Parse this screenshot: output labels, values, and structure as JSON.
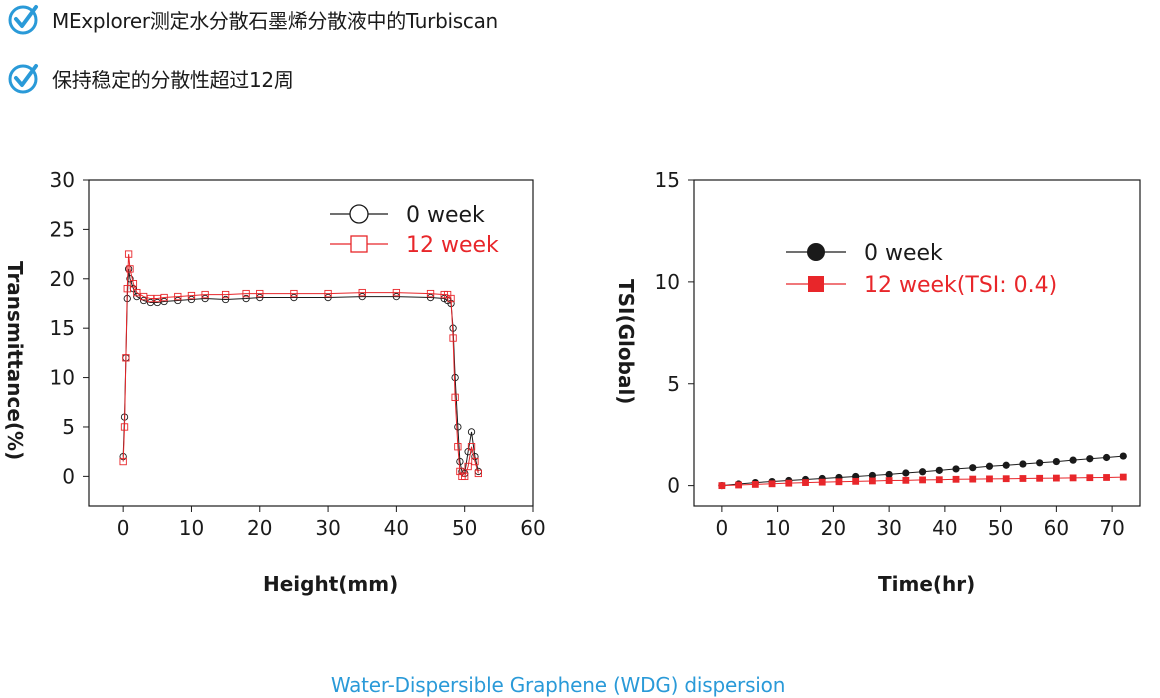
{
  "bullets": [
    {
      "text": "MExplorer测定水分散石墨烯分散液中的Turbiscan",
      "icon": "checkmark-circle-icon"
    },
    {
      "text": "保持稳定的分散性超过12周",
      "icon": "checkmark-circle-icon"
    }
  ],
  "colors": {
    "accent": "#2a9ad8",
    "black_series": "#1a1a1a",
    "red_series": "#e8262a"
  },
  "caption": "Water-Dispersible Graphene (WDG) dispersion",
  "chart_data": [
    {
      "type": "line",
      "xlabel": "Height(mm)",
      "ylabel": "Transmittance(%)",
      "xlim": [
        -5,
        60
      ],
      "ylim": [
        -3,
        30
      ],
      "xticks": [
        0,
        10,
        20,
        30,
        40,
        50,
        60
      ],
      "yticks": [
        0,
        5,
        10,
        15,
        20,
        25,
        30
      ],
      "legend_position": "top-right",
      "series": [
        {
          "name": "0 week",
          "color": "#1a1a1a",
          "marker": "open-circle",
          "x": [
            0,
            0.2,
            0.4,
            0.6,
            0.8,
            1.0,
            1.5,
            2.0,
            3,
            4,
            5,
            6,
            8,
            10,
            12,
            15,
            18,
            20,
            25,
            30,
            35,
            40,
            45,
            47,
            47.5,
            48,
            48.3,
            48.6,
            49,
            49.3,
            49.6,
            50,
            50.5,
            51,
            51.5,
            52
          ],
          "y": [
            2,
            6,
            12,
            18,
            21,
            20,
            19,
            18.2,
            17.8,
            17.6,
            17.6,
            17.7,
            17.8,
            17.9,
            18.0,
            17.9,
            18.0,
            18.1,
            18.1,
            18.1,
            18.2,
            18.2,
            18.1,
            18.0,
            17.8,
            17.5,
            15,
            10,
            5,
            1.5,
            0.5,
            0.3,
            2.5,
            4.5,
            2,
            0.5
          ]
        },
        {
          "name": "12 week",
          "color": "#e8262a",
          "marker": "open-square",
          "x": [
            0,
            0.2,
            0.4,
            0.6,
            0.8,
            1.0,
            1.5,
            2.0,
            3,
            4,
            5,
            6,
            8,
            10,
            12,
            15,
            18,
            20,
            25,
            30,
            35,
            40,
            45,
            47,
            47.5,
            48,
            48.3,
            48.6,
            49,
            49.3,
            49.6,
            50,
            50.5,
            51,
            51.5,
            52
          ],
          "y": [
            1.5,
            5,
            12,
            19,
            22.5,
            21,
            19.5,
            18.6,
            18.2,
            18.0,
            18.0,
            18.1,
            18.2,
            18.3,
            18.4,
            18.4,
            18.5,
            18.5,
            18.5,
            18.5,
            18.6,
            18.6,
            18.5,
            18.4,
            18.4,
            18,
            14,
            8,
            3,
            0.5,
            0,
            0,
            1,
            3,
            1.5,
            0.3
          ]
        }
      ]
    },
    {
      "type": "line",
      "xlabel": "Time(hr)",
      "ylabel": "TSI(Global)",
      "xlim": [
        -5,
        75
      ],
      "ylim": [
        -1,
        15
      ],
      "xticks": [
        0,
        10,
        20,
        30,
        40,
        50,
        60,
        70
      ],
      "yticks": [
        0,
        5,
        10,
        15
      ],
      "legend_position": "top-left",
      "series": [
        {
          "name": "0 week",
          "color": "#1a1a1a",
          "marker": "filled-circle",
          "x": [
            0,
            3,
            6,
            9,
            12,
            15,
            18,
            21,
            24,
            27,
            30,
            33,
            36,
            39,
            42,
            45,
            48,
            51,
            54,
            57,
            60,
            63,
            66,
            69,
            72
          ],
          "y": [
            0,
            0.08,
            0.15,
            0.2,
            0.25,
            0.3,
            0.35,
            0.4,
            0.45,
            0.5,
            0.55,
            0.62,
            0.68,
            0.75,
            0.82,
            0.88,
            0.95,
            1.0,
            1.06,
            1.12,
            1.18,
            1.25,
            1.32,
            1.38,
            1.45
          ]
        },
        {
          "name": "12 week(TSI: 0.4)",
          "color": "#e8262a",
          "marker": "filled-square",
          "x": [
            0,
            3,
            6,
            9,
            12,
            15,
            18,
            21,
            24,
            27,
            30,
            33,
            36,
            39,
            42,
            45,
            48,
            51,
            54,
            57,
            60,
            63,
            66,
            69,
            72
          ],
          "y": [
            0,
            0.03,
            0.06,
            0.09,
            0.12,
            0.15,
            0.17,
            0.19,
            0.21,
            0.23,
            0.25,
            0.26,
            0.28,
            0.29,
            0.31,
            0.32,
            0.33,
            0.34,
            0.35,
            0.36,
            0.37,
            0.38,
            0.39,
            0.4,
            0.42
          ]
        }
      ]
    }
  ]
}
